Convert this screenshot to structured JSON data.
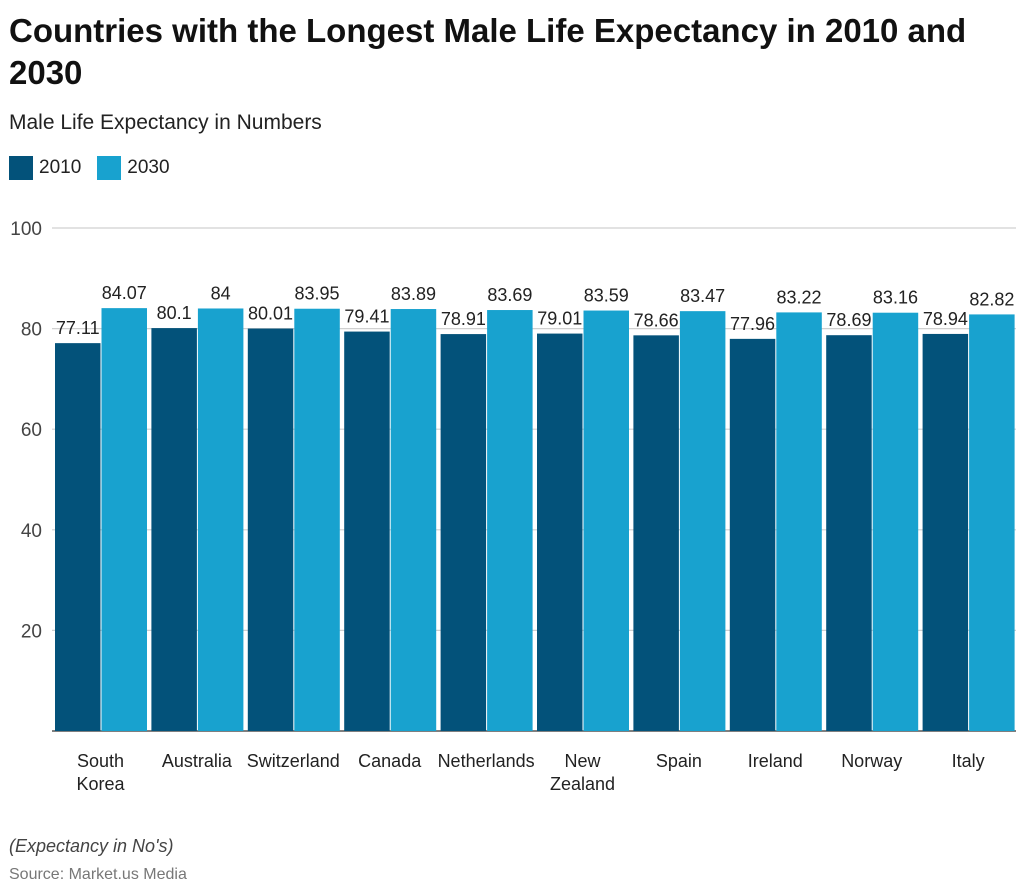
{
  "title": "Countries with the Longest Male Life Expectancy in 2010 and 2030",
  "subtitle": "Male Life Expectancy in Numbers",
  "note": "(Expectancy in No's)",
  "source": "Source: Market.us Media",
  "colors": {
    "2010": "#03527a",
    "2030": "#18a2cf"
  },
  "chart_data": {
    "type": "bar",
    "categories": [
      [
        "South",
        "Korea"
      ],
      [
        "Australia"
      ],
      [
        "Switzerland"
      ],
      [
        "Canada"
      ],
      [
        "Netherlands"
      ],
      [
        "New",
        "Zealand"
      ],
      [
        "Spain"
      ],
      [
        "Ireland"
      ],
      [
        "Norway"
      ],
      [
        "Italy"
      ]
    ],
    "series": [
      {
        "name": "2010",
        "values": [
          77.11,
          80.1,
          80.01,
          79.41,
          78.91,
          79.01,
          78.66,
          77.96,
          78.69,
          78.94
        ]
      },
      {
        "name": "2030",
        "values": [
          84.07,
          84,
          83.95,
          83.89,
          83.69,
          83.59,
          83.47,
          83.22,
          83.16,
          82.82
        ]
      }
    ],
    "ylim": [
      0,
      100
    ],
    "yticks": [
      20,
      40,
      60,
      80,
      100
    ],
    "grid": true,
    "legend": "top-left"
  }
}
